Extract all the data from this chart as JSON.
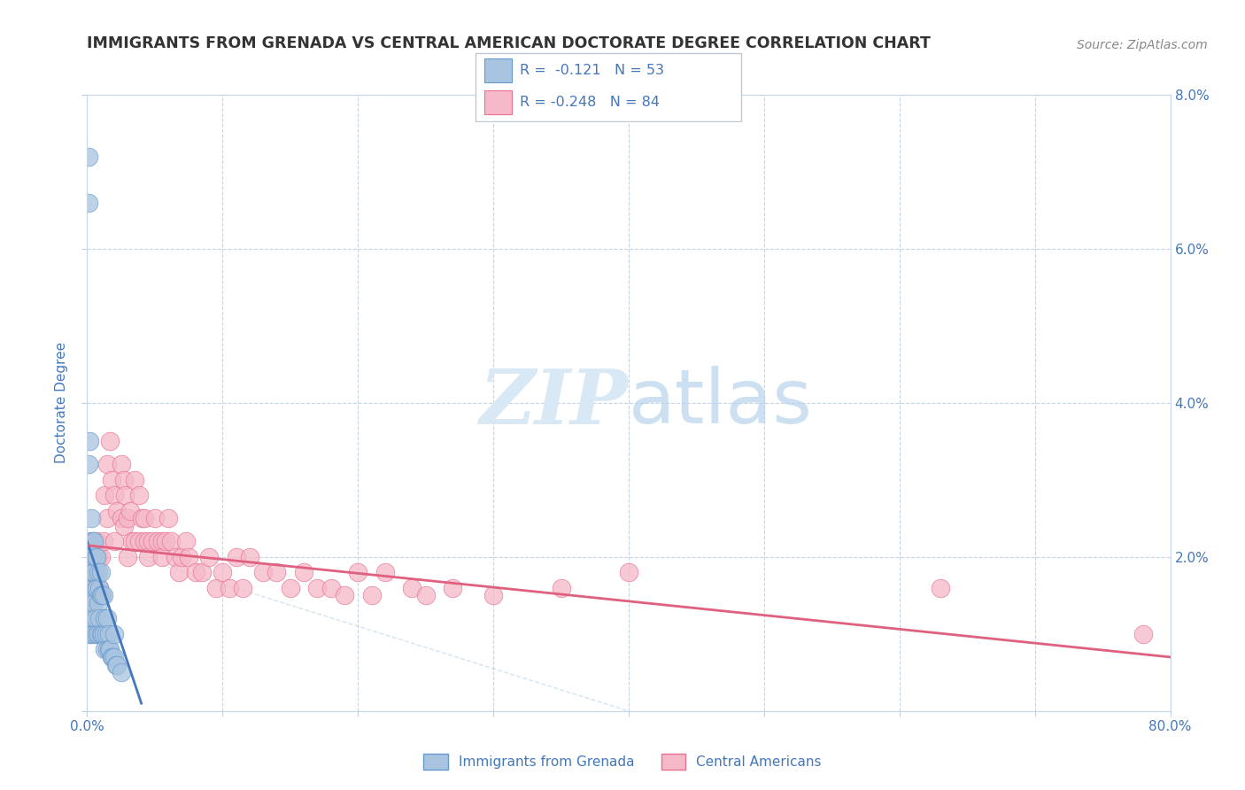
{
  "title": "IMMIGRANTS FROM GRENADA VS CENTRAL AMERICAN DOCTORATE DEGREE CORRELATION CHART",
  "source": "Source: ZipAtlas.com",
  "ylabel": "Doctorate Degree",
  "xlim": [
    0.0,
    0.8
  ],
  "ylim": [
    0.0,
    0.08
  ],
  "xticks": [
    0.0,
    0.1,
    0.2,
    0.3,
    0.4,
    0.5,
    0.6,
    0.7,
    0.8
  ],
  "xtick_labels": [
    "0.0%",
    "",
    "",
    "",
    "",
    "",
    "",
    "",
    "80.0%"
  ],
  "yticks": [
    0.0,
    0.02,
    0.04,
    0.06,
    0.08
  ],
  "ytick_labels_left": [
    "",
    "2.0%",
    "4.0%",
    "6.0%",
    "8.0%"
  ],
  "ytick_labels_right": [
    "",
    "2.0%",
    "4.0%",
    "6.0%",
    "8.0%"
  ],
  "blue_fill": "#a8c4e0",
  "pink_fill": "#f5b8c8",
  "blue_edge": "#6699cc",
  "pink_edge": "#e87090",
  "blue_line_color": "#4477bb",
  "pink_line_color": "#e06080",
  "legend_text_color": "#4477bb",
  "watermark_color": "#d8e8f4",
  "background_color": "#ffffff",
  "grid_color": "#c0d0e0",
  "title_color": "#333333",
  "ylabel_color": "#4477bb",
  "tick_color": "#4477bb",
  "source_color": "#888888",
  "legend_border_color": "#c0c8d0",
  "blue_scatter_x": [
    0.001,
    0.001,
    0.001,
    0.001,
    0.001,
    0.002,
    0.002,
    0.002,
    0.002,
    0.003,
    0.003,
    0.003,
    0.003,
    0.004,
    0.004,
    0.004,
    0.005,
    0.005,
    0.005,
    0.005,
    0.006,
    0.006,
    0.006,
    0.007,
    0.007,
    0.007,
    0.008,
    0.008,
    0.008,
    0.009,
    0.009,
    0.01,
    0.01,
    0.01,
    0.011,
    0.011,
    0.012,
    0.012,
    0.013,
    0.013,
    0.014,
    0.015,
    0.015,
    0.016,
    0.016,
    0.017,
    0.018,
    0.019,
    0.02,
    0.02,
    0.021,
    0.022,
    0.025
  ],
  "blue_scatter_y": [
    0.072,
    0.066,
    0.032,
    0.015,
    0.01,
    0.035,
    0.022,
    0.018,
    0.013,
    0.025,
    0.02,
    0.015,
    0.01,
    0.022,
    0.018,
    0.012,
    0.022,
    0.018,
    0.014,
    0.01,
    0.02,
    0.016,
    0.012,
    0.02,
    0.016,
    0.01,
    0.018,
    0.014,
    0.01,
    0.016,
    0.012,
    0.018,
    0.015,
    0.01,
    0.015,
    0.01,
    0.015,
    0.01,
    0.012,
    0.008,
    0.01,
    0.012,
    0.008,
    0.01,
    0.008,
    0.008,
    0.007,
    0.007,
    0.01,
    0.007,
    0.006,
    0.006,
    0.005
  ],
  "pink_scatter_x": [
    0.001,
    0.001,
    0.002,
    0.002,
    0.003,
    0.003,
    0.004,
    0.004,
    0.005,
    0.005,
    0.006,
    0.007,
    0.007,
    0.008,
    0.009,
    0.01,
    0.01,
    0.012,
    0.013,
    0.015,
    0.015,
    0.017,
    0.018,
    0.02,
    0.02,
    0.022,
    0.025,
    0.025,
    0.027,
    0.027,
    0.028,
    0.03,
    0.03,
    0.032,
    0.033,
    0.035,
    0.035,
    0.038,
    0.038,
    0.04,
    0.042,
    0.042,
    0.045,
    0.045,
    0.048,
    0.05,
    0.052,
    0.055,
    0.055,
    0.058,
    0.06,
    0.062,
    0.065,
    0.068,
    0.07,
    0.073,
    0.075,
    0.08,
    0.085,
    0.09,
    0.095,
    0.1,
    0.105,
    0.11,
    0.115,
    0.12,
    0.13,
    0.14,
    0.15,
    0.16,
    0.17,
    0.18,
    0.19,
    0.2,
    0.21,
    0.22,
    0.24,
    0.25,
    0.27,
    0.3,
    0.35,
    0.4,
    0.63,
    0.78
  ],
  "pink_scatter_y": [
    0.02,
    0.014,
    0.018,
    0.012,
    0.02,
    0.014,
    0.022,
    0.016,
    0.02,
    0.015,
    0.018,
    0.022,
    0.016,
    0.02,
    0.016,
    0.02,
    0.015,
    0.022,
    0.028,
    0.032,
    0.025,
    0.035,
    0.03,
    0.028,
    0.022,
    0.026,
    0.032,
    0.025,
    0.03,
    0.024,
    0.028,
    0.025,
    0.02,
    0.026,
    0.022,
    0.03,
    0.022,
    0.028,
    0.022,
    0.025,
    0.022,
    0.025,
    0.022,
    0.02,
    0.022,
    0.025,
    0.022,
    0.022,
    0.02,
    0.022,
    0.025,
    0.022,
    0.02,
    0.018,
    0.02,
    0.022,
    0.02,
    0.018,
    0.018,
    0.02,
    0.016,
    0.018,
    0.016,
    0.02,
    0.016,
    0.02,
    0.018,
    0.018,
    0.016,
    0.018,
    0.016,
    0.016,
    0.015,
    0.018,
    0.015,
    0.018,
    0.016,
    0.015,
    0.016,
    0.015,
    0.016,
    0.018,
    0.016,
    0.01
  ],
  "blue_trend_x0": 0.0,
  "blue_trend_x1": 0.04,
  "blue_trend_y0": 0.022,
  "blue_trend_y1": 0.001,
  "pink_trend_x0": 0.0,
  "pink_trend_x1": 0.8,
  "pink_trend_y0": 0.0215,
  "pink_trend_y1": 0.007,
  "faint_line_x0": 0.0,
  "faint_line_x1": 0.4,
  "faint_line_y0": 0.022,
  "faint_line_y1": 0.0,
  "legend_label1": "Immigrants from Grenada",
  "legend_label2": "Central Americans"
}
